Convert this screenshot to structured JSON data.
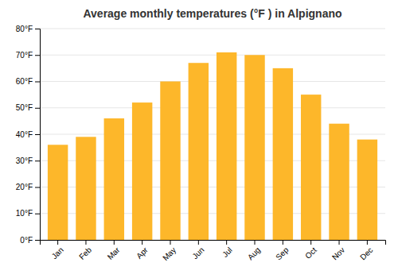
{
  "chart_data": {
    "type": "bar",
    "title": "Average monthly temperatures (°F ) in Alpignano",
    "categories": [
      "Jan",
      "Feb",
      "Mar",
      "Apr",
      "May",
      "Jun",
      "Jul",
      "Aug",
      "Sep",
      "Oct",
      "Nov",
      "Dec"
    ],
    "values": [
      36,
      39,
      46,
      52,
      60,
      67,
      71,
      70,
      65,
      55,
      44,
      38
    ],
    "color": "#FDB72A",
    "ylim": [
      0,
      80
    ],
    "yticks": [
      {
        "value": 0,
        "label": "0°F"
      },
      {
        "value": 10,
        "label": "10°F"
      },
      {
        "value": 20,
        "label": "20°F"
      },
      {
        "value": 30,
        "label": "30°F"
      },
      {
        "value": 40,
        "label": "40°F"
      },
      {
        "value": 50,
        "label": "50°F"
      },
      {
        "value": 60,
        "label": "60°F"
      },
      {
        "value": 70,
        "label": "70°F"
      },
      {
        "value": 80,
        "label": "80°F"
      }
    ],
    "grid": true
  }
}
